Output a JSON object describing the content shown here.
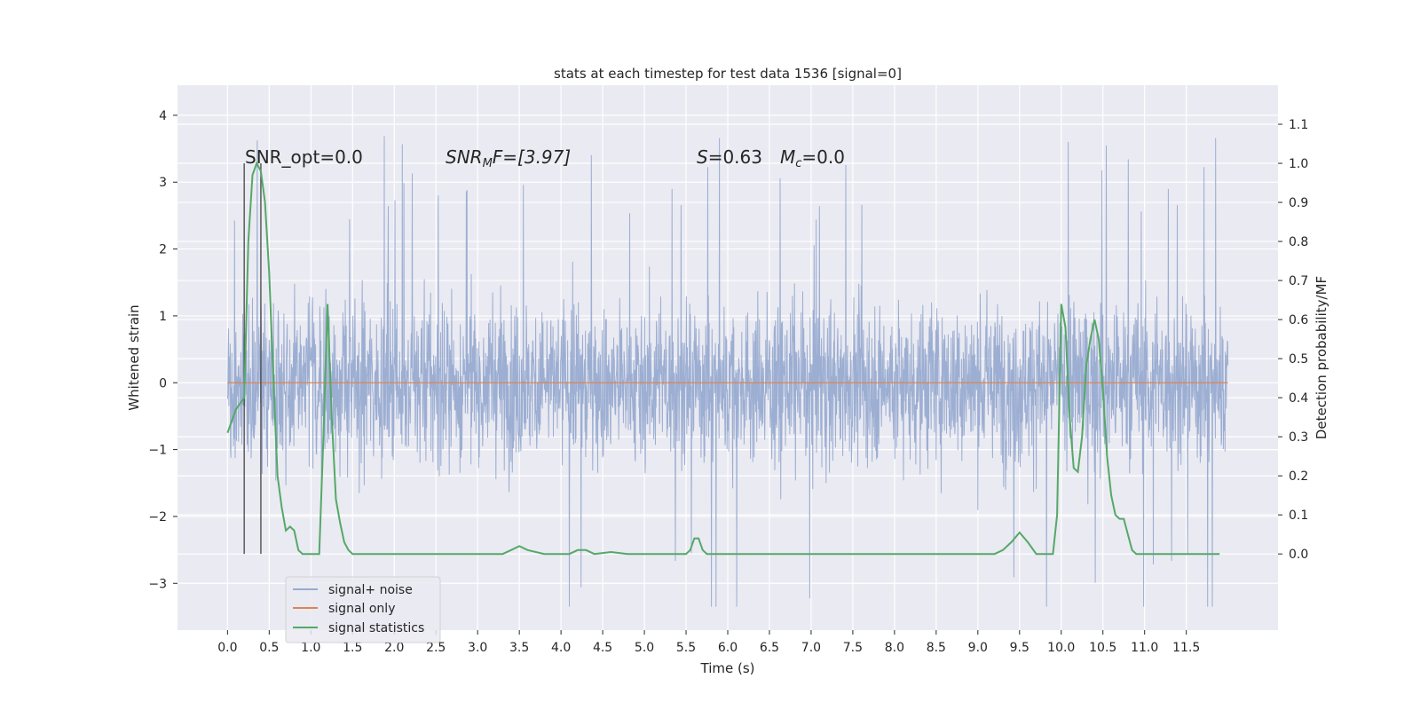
{
  "chart_data": {
    "type": "line",
    "title": "stats at each timestep for test data 1536 [signal=0]",
    "xlabel": "Time (s)",
    "ylabel": "Whitened strain",
    "ylabel_right": "Detection probability/MF",
    "xlim": [
      -0.6,
      12.6
    ],
    "ylim": [
      -3.7,
      4.45
    ],
    "ylim_right": [
      -0.195,
      1.2
    ],
    "x_ticks": [
      "0.0",
      "0.5",
      "1.0",
      "1.5",
      "2.0",
      "2.5",
      "3.0",
      "3.5",
      "4.0",
      "4.5",
      "5.0",
      "5.5",
      "6.0",
      "6.5",
      "7.0",
      "7.5",
      "8.0",
      "8.5",
      "9.0",
      "9.5",
      "10.0",
      "10.5",
      "11.0",
      "11.5"
    ],
    "y_ticks": [
      "−3",
      "−2",
      "−1",
      "0",
      "1",
      "2",
      "3",
      "4"
    ],
    "y_ticks_right": [
      "0.0",
      "0.1",
      "0.2",
      "0.3",
      "0.4",
      "0.5",
      "0.6",
      "0.7",
      "0.8",
      "0.9",
      "1.0",
      "1.1"
    ],
    "grid": true,
    "legend_placement": "lower-left",
    "annotations": {
      "snr_opt": "SNR_opt=0.0",
      "snr_mf_base": "SNR",
      "snr_mf_sub": "M",
      "snr_mf_rest": "F=[3.97]",
      "s_label": "S",
      "s_value": "=0.63",
      "mc_base": "M",
      "mc_sub": "c",
      "mc_value": "=0.0"
    },
    "vertical_markers": [
      0.2,
      0.4
    ],
    "series": [
      {
        "name": "signal+ noise",
        "color": "#98abd0",
        "kind": "noise",
        "x_range": [
          0.0,
          12.0
        ],
        "typical_band": [
          -1.5,
          1.5
        ],
        "peak_range": [
          -3.35,
          4.08
        ]
      },
      {
        "name": "signal only",
        "color": "#dd8452",
        "kind": "flat",
        "x": [
          0.0,
          12.0
        ],
        "y": [
          0.0,
          0.0
        ]
      },
      {
        "name": "signal statistics",
        "color": "#55a868",
        "kind": "right-axis",
        "x": [
          0.0,
          0.1,
          0.2,
          0.25,
          0.3,
          0.35,
          0.4,
          0.45,
          0.5,
          0.55,
          0.6,
          0.65,
          0.7,
          0.75,
          0.8,
          0.85,
          0.9,
          0.95,
          1.0,
          1.05,
          1.1,
          1.15,
          1.2,
          1.25,
          1.3,
          1.35,
          1.4,
          1.45,
          1.5,
          1.6,
          1.8,
          2.0,
          2.5,
          3.0,
          3.3,
          3.4,
          3.5,
          3.6,
          3.8,
          4.0,
          4.1,
          4.2,
          4.3,
          4.4,
          4.6,
          4.8,
          5.0,
          5.5,
          5.55,
          5.6,
          5.65,
          5.7,
          5.75,
          5.8,
          6.0,
          6.5,
          7.0,
          7.5,
          8.0,
          8.5,
          9.0,
          9.2,
          9.3,
          9.4,
          9.5,
          9.6,
          9.7,
          9.8,
          9.9,
          9.95,
          10.0,
          10.05,
          10.1,
          10.15,
          10.2,
          10.25,
          10.3,
          10.35,
          10.4,
          10.45,
          10.5,
          10.55,
          10.6,
          10.65,
          10.7,
          10.75,
          10.8,
          10.85,
          10.9,
          10.95,
          11.0,
          11.05,
          11.1,
          11.2,
          11.5,
          11.9
        ],
        "y": [
          0.31,
          0.37,
          0.4,
          0.8,
          0.97,
          1.0,
          0.98,
          0.9,
          0.72,
          0.45,
          0.2,
          0.12,
          0.06,
          0.07,
          0.06,
          0.01,
          0.0,
          0.0,
          0.0,
          0.0,
          0.0,
          0.3,
          0.64,
          0.35,
          0.14,
          0.08,
          0.03,
          0.01,
          0.0,
          0.0,
          0.0,
          0.0,
          0.0,
          0.0,
          0.0,
          0.01,
          0.02,
          0.01,
          0.0,
          0.0,
          0.0,
          0.01,
          0.01,
          0.0,
          0.005,
          0.0,
          0.0,
          0.0,
          0.01,
          0.04,
          0.04,
          0.01,
          0.0,
          0.0,
          0.0,
          0.0,
          0.0,
          0.0,
          0.0,
          0.0,
          0.0,
          0.0,
          0.01,
          0.03,
          0.055,
          0.03,
          0.0,
          0.0,
          0.0,
          0.1,
          0.64,
          0.58,
          0.35,
          0.22,
          0.21,
          0.3,
          0.48,
          0.55,
          0.6,
          0.55,
          0.42,
          0.25,
          0.15,
          0.1,
          0.09,
          0.09,
          0.05,
          0.01,
          0.0,
          0.0,
          0.0,
          0.0,
          0.0,
          0.0,
          0.0,
          0.0
        ]
      }
    ]
  }
}
